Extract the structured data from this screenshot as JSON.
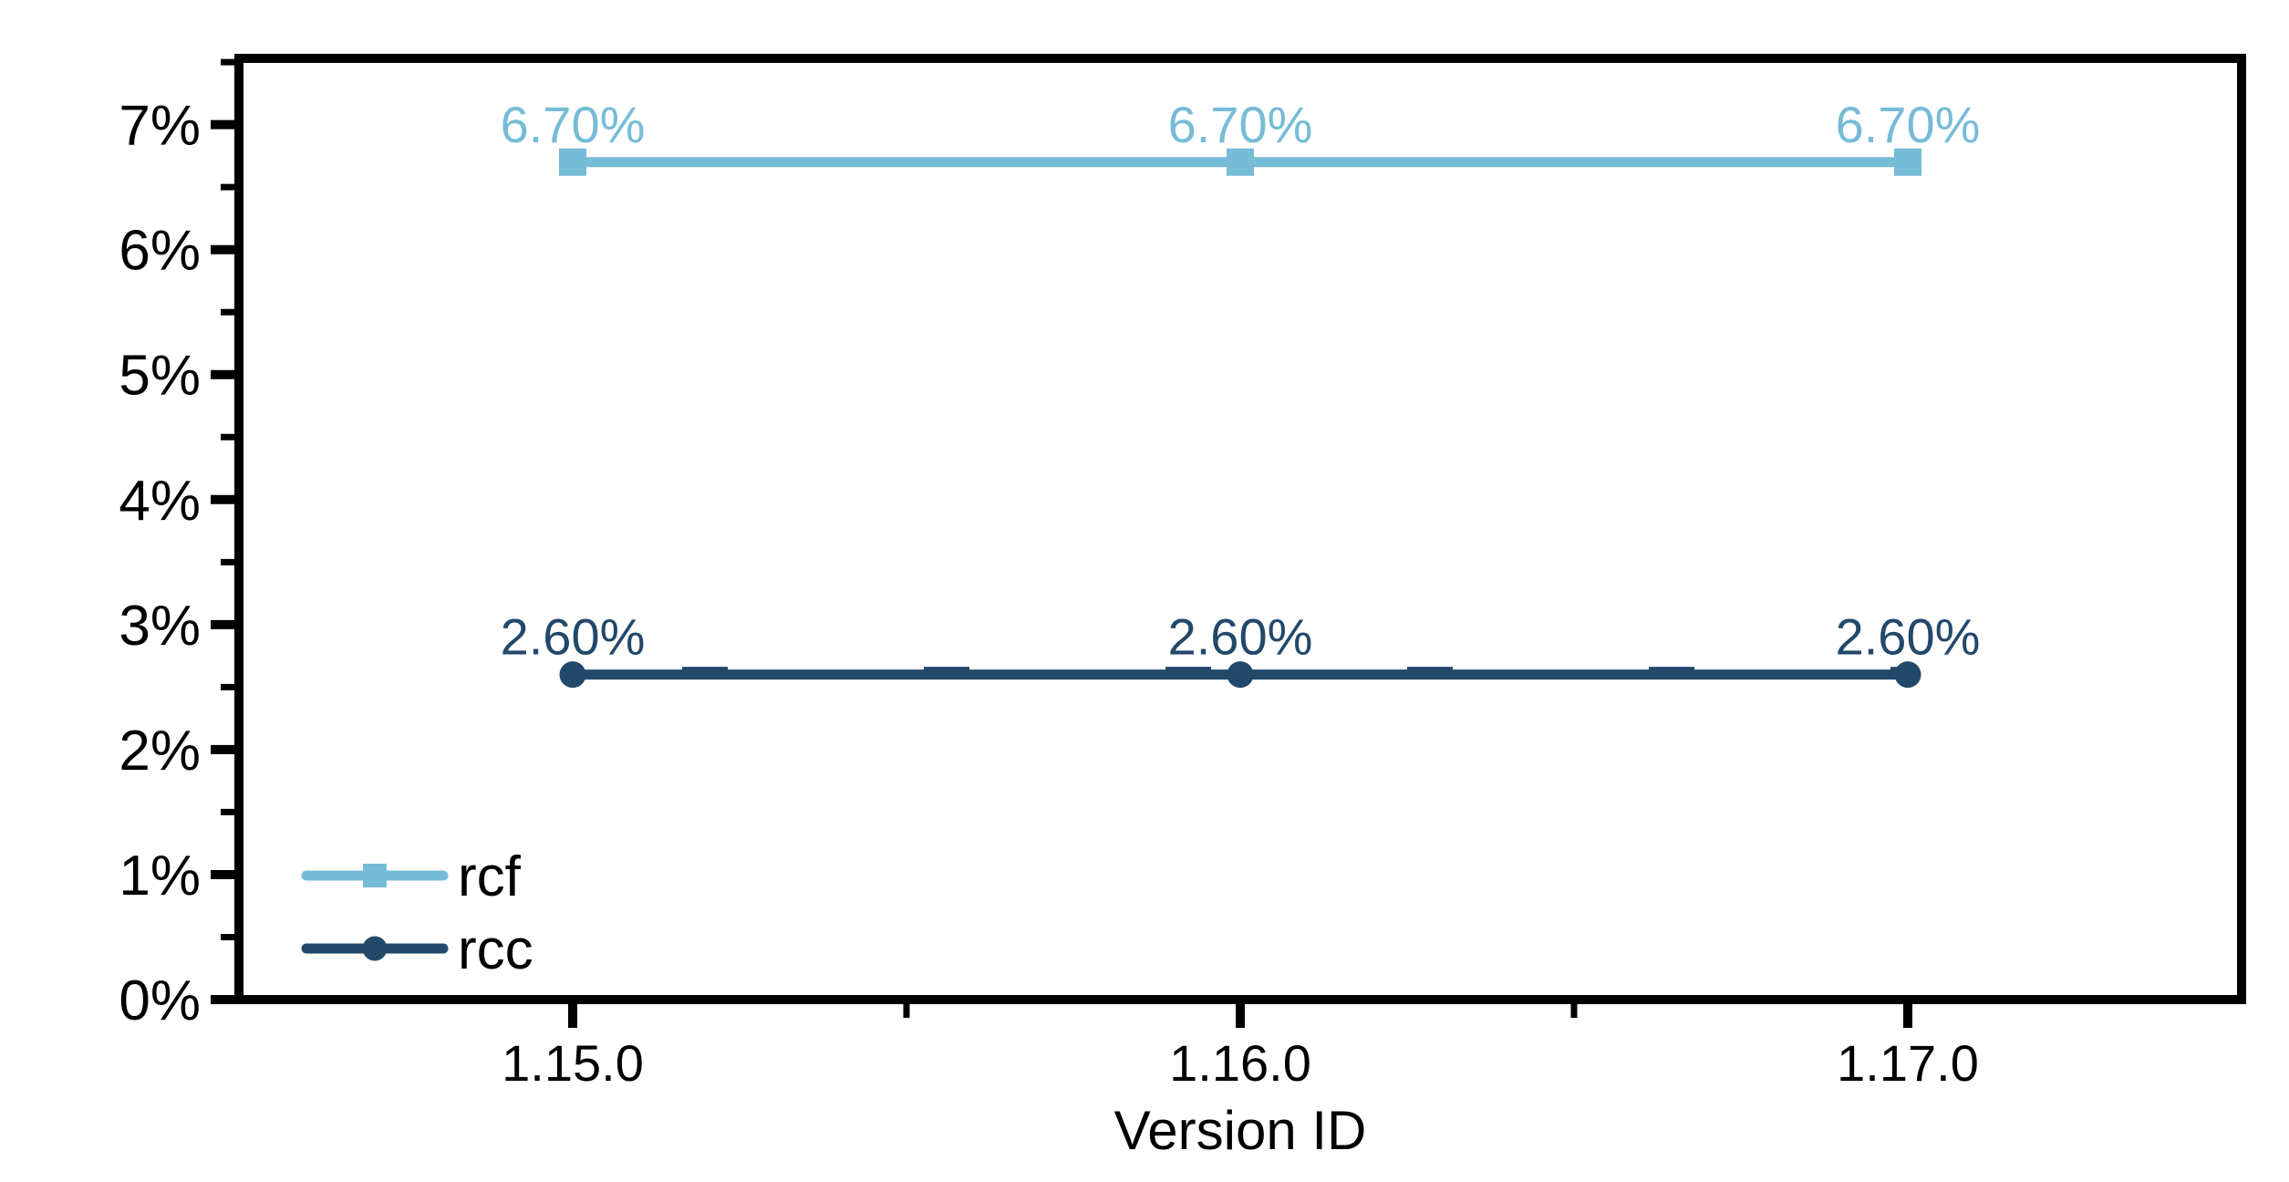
{
  "chart_data": {
    "type": "line",
    "title": "",
    "xlabel": "Version ID",
    "ylabel": "",
    "categories": [
      "1.15.0",
      "1.16.0",
      "1.17.0"
    ],
    "series": [
      {
        "name": "rcf",
        "values": [
          6.7,
          6.7,
          6.7
        ],
        "labels": [
          "6.70%",
          "6.70%",
          "6.70%"
        ],
        "color": "#76BCD6",
        "marker": "square",
        "overlay": "none"
      },
      {
        "name": "rcc",
        "values": [
          2.6,
          2.6,
          2.6
        ],
        "labels": [
          "2.60%",
          "2.60%",
          "2.60%"
        ],
        "color": "#22486A",
        "marker": "circle",
        "overlay": "dashes"
      }
    ],
    "ylim": [
      0,
      7.53
    ],
    "y_major_tick_values": [
      0,
      1,
      2,
      3,
      4,
      5,
      6,
      7
    ],
    "y_tick_labels": [
      "0%",
      "1%",
      "2%",
      "3%",
      "4%",
      "5%",
      "6%",
      "7%"
    ],
    "y_minor_tick_step": 0.5,
    "grid": false,
    "legend_position": "inside-bottom-left",
    "axis_color": "#000000",
    "text_color": "#000000",
    "background_color": "#ffffff"
  }
}
